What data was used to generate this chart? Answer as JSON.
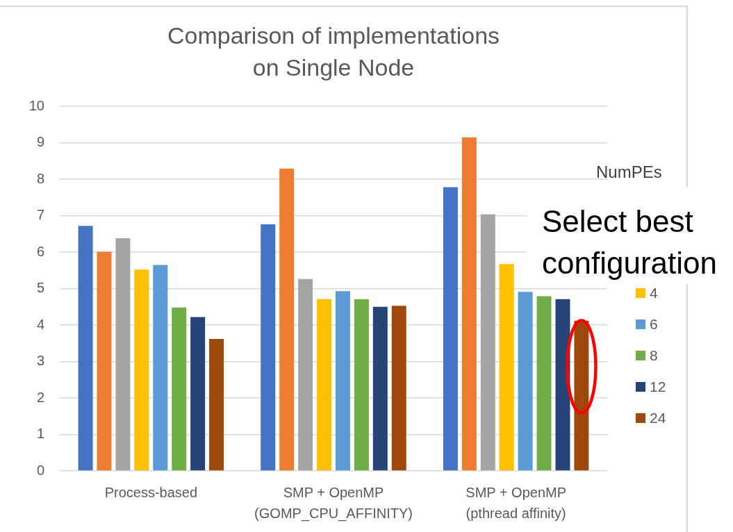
{
  "chart_data": {
    "type": "bar",
    "title": "Comparison of implementations\non Single Node",
    "legend_title": "NumPEs",
    "annotations": [
      "Select best\nconfiguration"
    ],
    "categories": [
      "Process-based",
      "SMP + OpenMP\n(GOMP_CPU_AFFINITY)",
      "SMP + OpenMP\n(pthread affinity)"
    ],
    "series": [
      {
        "color": "#4472c4",
        "values": [
          6.72,
          6.76,
          7.78
        ]
      },
      {
        "color": "#ed7d31",
        "values": [
          6.01,
          8.29,
          9.15
        ]
      },
      {
        "color": "#a5a5a5",
        "values": [
          6.38,
          5.26,
          7.04
        ]
      },
      {
        "name": "4",
        "color": "#ffc000",
        "values": [
          5.52,
          4.71,
          5.67
        ]
      },
      {
        "name": "6",
        "color": "#5b9bd5",
        "values": [
          5.65,
          4.93,
          4.91
        ]
      },
      {
        "name": "8",
        "color": "#70ad47",
        "values": [
          4.48,
          4.71,
          4.79
        ]
      },
      {
        "name": "12",
        "color": "#264478",
        "values": [
          4.22,
          4.5,
          4.71
        ]
      },
      {
        "name": "24",
        "color": "#9e480e",
        "values": [
          3.62,
          4.53,
          4.12
        ]
      }
    ],
    "ylim": [
      0,
      10
    ],
    "yticks": [
      0,
      1,
      2,
      3,
      4,
      5,
      6,
      7,
      8,
      9,
      10
    ],
    "grid": "y",
    "legend": "right"
  }
}
